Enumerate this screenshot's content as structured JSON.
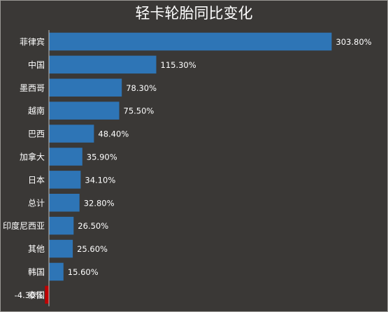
{
  "chart_data": {
    "type": "bar",
    "orientation": "horizontal",
    "title": "轻卡轮胎同比变化",
    "categories": [
      "菲律宾",
      "中国",
      "墨西哥",
      "越南",
      "巴西",
      "加拿大",
      "日本",
      "总计",
      "印度尼西亚",
      "其他",
      "韩国",
      "泰国"
    ],
    "values": [
      303.8,
      115.3,
      78.3,
      75.5,
      48.4,
      35.9,
      34.1,
      32.8,
      26.5,
      25.6,
      15.6,
      -4.3
    ],
    "value_labels": [
      "303.80%",
      "115.30%",
      "78.30%",
      "75.50%",
      "48.40%",
      "35.90%",
      "34.10%",
      "32.80%",
      "26.50%",
      "25.60%",
      "15.60%",
      "-4.30%"
    ],
    "unit": "%",
    "colors": {
      "positive": "#2e75b6",
      "negative": "#c00000",
      "background": "#3a3836",
      "text": "#ffffff",
      "axis": "#bfbfbf"
    },
    "grid": false,
    "legend": "none"
  }
}
